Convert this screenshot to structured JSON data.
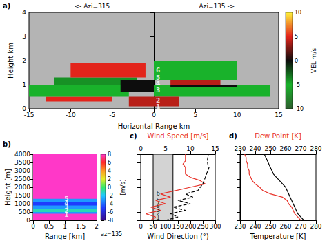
{
  "chart_data": [
    {
      "type": "heatmap",
      "panel_label": "a)",
      "direction_labels": [
        "<- Azi=315",
        "Azi=135 ->"
      ],
      "xlabel": "Horizontal Range km",
      "ylabel": "Height km",
      "xlim": [
        -15,
        15
      ],
      "xticks": [
        -15,
        -10,
        -5,
        0,
        5,
        10,
        15
      ],
      "ylim": [
        0,
        4
      ],
      "yticks": [
        0,
        1,
        2,
        3,
        4
      ],
      "cells": [
        {
          "x": [
            -13,
            -5
          ],
          "y": [
            0.3,
            0.5
          ],
          "value": 5
        },
        {
          "x": [
            -15,
            -3
          ],
          "y": [
            0.5,
            1.0
          ],
          "value": -5
        },
        {
          "x": [
            -12,
            -2
          ],
          "y": [
            1.0,
            1.3
          ],
          "value": -4
        },
        {
          "x": [
            -10,
            -1
          ],
          "y": [
            1.3,
            1.9
          ],
          "value": 5
        },
        {
          "x": [
            -4,
            0
          ],
          "y": [
            0.7,
            1.2
          ],
          "value": 0
        },
        {
          "x": [
            0,
            14
          ],
          "y": [
            0.5,
            1.0
          ],
          "value": -5
        },
        {
          "x": [
            2,
            10
          ],
          "y": [
            0.9,
            1.0
          ],
          "value": 0
        },
        {
          "x": [
            2,
            8
          ],
          "y": [
            1.0,
            1.2
          ],
          "value": 4
        },
        {
          "x": [
            0,
            10
          ],
          "y": [
            1.2,
            2.0
          ],
          "value": -5
        },
        {
          "x": [
            -3,
            3
          ],
          "y": [
            0.1,
            0.5
          ],
          "value": 4
        }
      ],
      "colorbar": {
        "label": "VEL m/s",
        "range": [
          -10,
          10
        ],
        "ticks": [
          -10,
          -5,
          0,
          5,
          10
        ]
      },
      "annotations": [
        {
          "text": "1",
          "x": 0.5,
          "y": 0.1
        },
        {
          "text": "2",
          "x": 0.5,
          "y": 0.35
        },
        {
          "text": "3",
          "x": 0.5,
          "y": 0.78
        },
        {
          "text": "4",
          "x": 0.5,
          "y": 1.05
        },
        {
          "text": "5",
          "x": 0.5,
          "y": 1.3
        },
        {
          "text": "6",
          "x": 0.5,
          "y": 1.6
        }
      ]
    },
    {
      "type": "heatmap",
      "panel_label": "b)",
      "note": "az=135",
      "xlabel": "Range [km]",
      "ylabel": "Height [m]",
      "xlim": [
        0,
        2
      ],
      "xticks": [
        0,
        0.5,
        1,
        1.5,
        2
      ],
      "ylim": [
        0,
        4000
      ],
      "yticks": [
        0,
        500,
        1000,
        1500,
        2000,
        2500,
        3000,
        3500,
        4000
      ],
      "cells": [
        {
          "x": [
            0,
            2
          ],
          "y": [
            0,
            4000
          ],
          "value": 8
        },
        {
          "x": [
            0,
            2
          ],
          "y": [
            400,
            1300
          ],
          "value": -3
        },
        {
          "x": [
            0,
            2
          ],
          "y": [
            900,
            1100
          ],
          "value": -5
        },
        {
          "x": [
            0,
            2
          ],
          "y": [
            500,
            700
          ],
          "value": -1
        }
      ],
      "colorbar": {
        "label": "[m/s]",
        "range": [
          -8,
          8
        ],
        "ticks": [
          -8,
          -6,
          -4,
          -2,
          0,
          2,
          4,
          6,
          8
        ]
      },
      "annotations": [
        {
          "text": "1",
          "x": 1.05,
          "y": 350
        },
        {
          "text": "2",
          "x": 1.05,
          "y": 600
        },
        {
          "text": "3",
          "x": 1.05,
          "y": 800
        },
        {
          "text": "4",
          "x": 1.05,
          "y": 1050
        },
        {
          "text": "5",
          "x": 1.05,
          "y": 1300
        }
      ]
    },
    {
      "type": "line",
      "panel_label": "c)",
      "tick_labels": "x",
      "xlabel": "Wind Direction (°)",
      "x2label": "Wind Speed [m/s]",
      "xlim": [
        0,
        300
      ],
      "xticks": [
        0,
        50,
        100,
        150,
        200,
        250,
        300
      ],
      "x2lim": [
        0,
        15
      ],
      "x2ticks": [
        0,
        5,
        10,
        15
      ],
      "ylim": [
        0,
        4000
      ],
      "yticks": [
        0,
        500,
        1000,
        1500,
        2000,
        2500,
        3000,
        3500,
        4000
      ],
      "shaded_range": [
        50,
        130
      ],
      "y": [
        0,
        200,
        400,
        600,
        800,
        1000,
        1200,
        1400,
        1600,
        1800,
        2000,
        2200,
        2400,
        2600,
        2800,
        3000,
        3200,
        3400,
        3600,
        3800,
        4000
      ],
      "series": [
        {
          "color": "#e8332a",
          "line_style": "solid",
          "axis": "x2",
          "values": [
            2,
            3,
            1,
            4,
            2,
            5,
            3,
            6,
            4,
            7,
            10,
            13,
            12,
            10,
            9,
            9,
            9,
            8.5,
            9,
            9,
            9
          ]
        },
        {
          "color": "#000000",
          "line_style": "dashed",
          "values": [
            100,
            150,
            120,
            180,
            130,
            200,
            150,
            210,
            180,
            230,
            240,
            250,
            255,
            260,
            265,
            270,
            275,
            270,
            268,
            270,
            272
          ]
        }
      ],
      "annotations": [
        {
          "text": "1",
          "x": 70,
          "y": 150
        },
        {
          "text": "2",
          "x": 70,
          "y": 400
        },
        {
          "text": "3",
          "x": 70,
          "y": 600
        },
        {
          "text": "4",
          "x": 70,
          "y": 900
        },
        {
          "text": "5",
          "x": 70,
          "y": 1200
        },
        {
          "text": "6",
          "x": 70,
          "y": 1600
        }
      ]
    },
    {
      "type": "line",
      "panel_label": "d)",
      "tick_labels": "x",
      "xlabel": "Temperature [K]",
      "x2label": "Dew Point [K]",
      "xlim": [
        230,
        280
      ],
      "xticks": [
        230,
        240,
        250,
        260,
        270,
        280
      ],
      "x2lim": [
        230,
        280
      ],
      "x2ticks": [
        230,
        240,
        250,
        260,
        270,
        280
      ],
      "ylim": [
        0,
        4000
      ],
      "yticks": [
        0,
        500,
        1000,
        1500,
        2000,
        2500,
        3000,
        3500,
        4000
      ],
      "y": [
        0,
        200,
        400,
        600,
        800,
        1000,
        1200,
        1400,
        1600,
        1800,
        2000,
        2200,
        2400,
        2600,
        2800,
        3000,
        3200,
        3400,
        3600,
        3800,
        4000
      ],
      "series": [
        {
          "color": "#e8332a",
          "line_style": "solid",
          "axis": "x2",
          "values": [
            270,
            268,
            266,
            265,
            264,
            262,
            261,
            258,
            250,
            245,
            243,
            240,
            238,
            237,
            236,
            236,
            235,
            235,
            234,
            234,
            233
          ]
        },
        {
          "color": "#000000",
          "line_style": "solid",
          "values": [
            272,
            270,
            268,
            267,
            266,
            265,
            264,
            263,
            262,
            261,
            260,
            258,
            256,
            254,
            252,
            251,
            250,
            249,
            248,
            247,
            246
          ]
        }
      ]
    }
  ]
}
